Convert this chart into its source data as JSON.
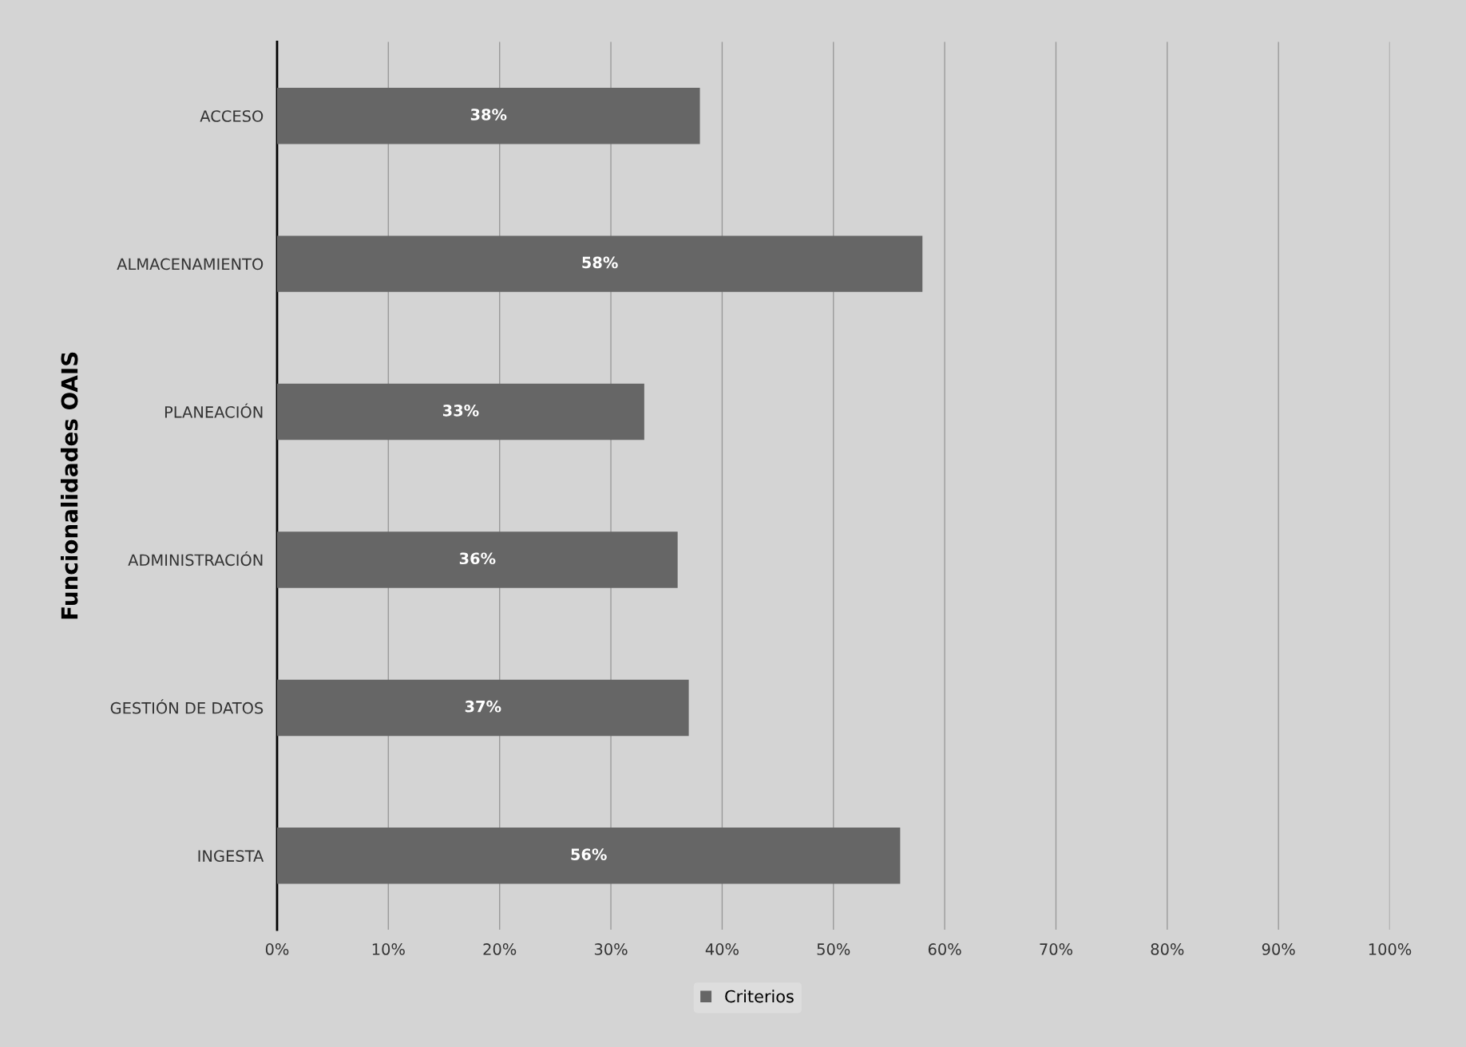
{
  "chart_data": {
    "type": "bar",
    "orientation": "horizontal",
    "ylabel": "Funcionalidades OAIS",
    "categories": [
      "ACCESO",
      "ALMACENAMIENTO",
      "PLANEACIÓN",
      "ADMINISTRACIÓN",
      "GESTIÓN DE DATOS",
      "INGESTA"
    ],
    "series": [
      {
        "name": "Criterios",
        "color": "#666666",
        "values": [
          38,
          58,
          33,
          36,
          37,
          56
        ],
        "value_labels": [
          "38%",
          "58%",
          "33%",
          "36%",
          "37%",
          "56%"
        ]
      }
    ],
    "xlim": [
      0,
      100
    ],
    "xticks": [
      {
        "value": 0,
        "label": "0%"
      },
      {
        "value": 10,
        "label": "10%"
      },
      {
        "value": 20,
        "label": "20%"
      },
      {
        "value": 30,
        "label": "30%"
      },
      {
        "value": 40,
        "label": "40%"
      },
      {
        "value": 50,
        "label": "50%"
      },
      {
        "value": 60,
        "label": "60%"
      },
      {
        "value": 70,
        "label": "70%"
      },
      {
        "value": 80,
        "label": "80%"
      },
      {
        "value": 90,
        "label": "90%"
      },
      {
        "value": 100,
        "label": "100%"
      }
    ],
    "grid": "x",
    "legend": "bottom"
  }
}
